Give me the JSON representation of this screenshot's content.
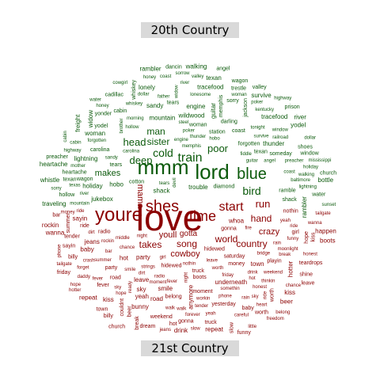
{
  "labels": {
    "top": "20th Country",
    "bottom": "21st Country"
  },
  "colors": {
    "top": "#0b5a0b",
    "bottom": "#8b0000",
    "label_bg": "#d9d9d9"
  },
  "featured_words": [
    {
      "text": "love",
      "group": "bottom"
    },
    {
      "text": "youre",
      "group": "bottom"
    },
    {
      "text": "mmm",
      "group": "top"
    },
    {
      "text": "lord",
      "group": "top"
    },
    {
      "text": "blue",
      "group": "top"
    },
    {
      "text": "shes",
      "group": "bottom"
    },
    {
      "text": "time",
      "group": "bottom"
    },
    {
      "text": "train",
      "group": "top"
    },
    {
      "text": "start",
      "group": "bottom"
    },
    {
      "text": "bird",
      "group": "top"
    },
    {
      "text": "deep",
      "group": "top"
    },
    {
      "text": "cold",
      "group": "top"
    },
    {
      "text": "world",
      "group": "bottom"
    },
    {
      "text": "country",
      "group": "bottom"
    },
    {
      "text": "song",
      "group": "bottom"
    },
    {
      "text": "head",
      "group": "top"
    },
    {
      "text": "sister",
      "group": "top"
    },
    {
      "text": "poor",
      "group": "top"
    },
    {
      "text": "man",
      "group": "top"
    },
    {
      "text": "takes",
      "group": "bottom"
    },
    {
      "text": "youll",
      "group": "bottom"
    },
    {
      "text": "run",
      "group": "bottom"
    },
    {
      "text": "hand",
      "group": "bottom"
    },
    {
      "text": "crazy",
      "group": "bottom"
    },
    {
      "text": "gotta",
      "group": "bottom"
    },
    {
      "text": "cowboy",
      "group": "bottom"
    },
    {
      "text": "mama",
      "group": "bottom"
    },
    {
      "text": "makes",
      "group": "top"
    }
  ],
  "filler_words": {
    "top": [
      "holiday",
      "survive",
      "texan",
      "baltimore",
      "jackson",
      "sandy",
      "coast",
      "trestle",
      "yodel",
      "someday",
      "hollow",
      "cadillac",
      "memphis",
      "tonight",
      "freight",
      "forgotten",
      "water",
      "tracefood",
      "steel",
      "traveling",
      "mountain",
      "railroad",
      "tears",
      "preacher",
      "whiskey",
      "morning",
      "honey",
      "darling",
      "woman",
      "highway",
      "rambler",
      "mississippi",
      "lonely",
      "walking",
      "trouble",
      "heartache",
      "river",
      "cabin",
      "sorrow",
      "prison",
      "widow",
      "mother",
      "father",
      "brother",
      "church",
      "cotton",
      "engine",
      "station",
      "whistle",
      "dollar",
      "wagon",
      "valley",
      "cabin",
      "moonlight",
      "wildwood",
      "cowgirl",
      "ramble",
      "lonesome",
      "yonder",
      "kentucky",
      "texas",
      "carolina",
      "lightning",
      "thunder",
      "window",
      "shoes",
      "diamond",
      "gamble",
      "poker",
      "jukebox",
      "sunset",
      "bottle",
      "dancin",
      "fiddle",
      "banjo",
      "guitar",
      "sorry",
      "heaven",
      "angel",
      "devil",
      "hobo",
      "shack"
    ],
    "bottom": [
      "beer",
      "chance",
      "party",
      "smile",
      "truck",
      "dirt",
      "tailgate",
      "ride",
      "girl",
      "summer",
      "night",
      "phone",
      "kiss",
      "radio",
      "drink",
      "bar",
      "town",
      "road",
      "sky",
      "hope",
      "dream",
      "money",
      "hot",
      "friday",
      "saturday",
      "weekend",
      "boots",
      "jeans",
      "whoa",
      "yeah",
      "baby",
      "daddy",
      "wanna",
      "gonna",
      "somethin",
      "nothin",
      "anymore",
      "freedom",
      "rockin",
      "sayin",
      "fever",
      "playin",
      "bunny",
      "hidewed",
      "repeat",
      "workin",
      "billy",
      "shine",
      "thinkin",
      "forget",
      "leave",
      "couldnt",
      "happen",
      "honest",
      "careful",
      "break",
      "middle",
      "forever",
      "ready",
      "heart",
      "moment",
      "walk",
      "little",
      "funny",
      "crash",
      "hotter",
      "yesterday",
      "belong",
      "worth",
      "bridge",
      "slow",
      "moonlight",
      "church",
      "strings",
      "tender",
      "teardrops",
      "underneath",
      "fire",
      "rain",
      "ride"
    ]
  }
}
